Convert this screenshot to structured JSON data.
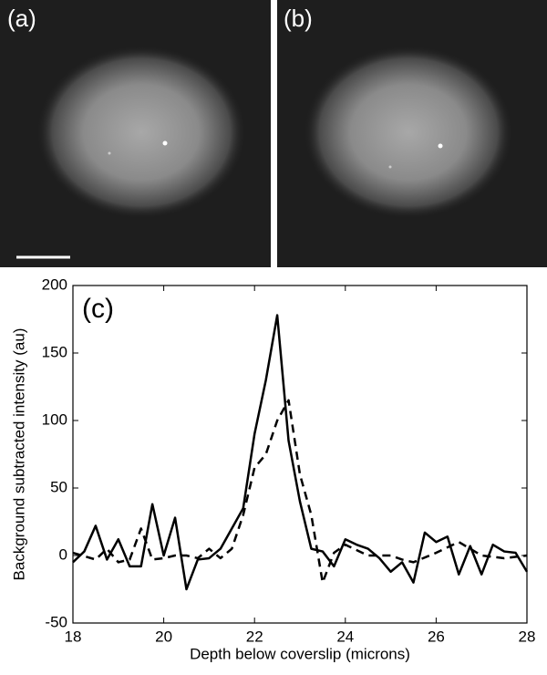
{
  "panels": [
    {
      "label": "(a)"
    },
    {
      "label": "(b)"
    }
  ],
  "chart_data": {
    "type": "line",
    "annotation": "(c)",
    "x_label": "Depth below coverslip (microns)",
    "y_label": "Background subtracted intensity (au)",
    "xlim": [
      18,
      28
    ],
    "ylim": [
      -50,
      200
    ],
    "xticks": [
      18,
      20,
      22,
      24,
      26,
      28
    ],
    "yticks": [
      -50,
      0,
      50,
      100,
      150,
      200
    ],
    "grid": false,
    "series": [
      {
        "color": "#000000",
        "style": "solid",
        "x": [
          18,
          18.25,
          18.5,
          18.75,
          19,
          19.25,
          19.5,
          19.75,
          20,
          20.25,
          20.5,
          20.75,
          21,
          21.25,
          21.5,
          21.75,
          22,
          22.25,
          22.5,
          22.75,
          23,
          23.25,
          23.5,
          23.75,
          24,
          24.25,
          24.5,
          24.75,
          25,
          25.25,
          25.5,
          25.75,
          26,
          26.25,
          26.5,
          26.75,
          27,
          27.25,
          27.5,
          27.75,
          28
        ],
        "values": [
          -5,
          3,
          22,
          -3,
          12,
          -8,
          -8,
          38,
          0,
          28,
          -25,
          -3,
          -2,
          5,
          20,
          35,
          90,
          130,
          178,
          85,
          40,
          5,
          3,
          -8,
          12,
          8,
          5,
          -2,
          -12,
          -5,
          -20,
          17,
          10,
          14,
          -14,
          7,
          -14,
          8,
          3,
          2,
          -12
        ]
      },
      {
        "color": "#000000",
        "style": "dashed",
        "x": [
          18,
          18.5,
          18.75,
          19,
          19.25,
          19.5,
          19.75,
          20,
          20.25,
          20.5,
          20.75,
          21,
          21.25,
          21.5,
          21.75,
          22,
          22.25,
          22.5,
          22.75,
          23,
          23.25,
          23.5,
          23.75,
          24,
          24.5,
          25,
          25.25,
          25.5,
          26,
          26.5,
          27,
          27.5,
          28
        ],
        "values": [
          2,
          -3,
          5,
          -5,
          -3,
          20,
          -3,
          -2,
          0,
          0,
          -2,
          5,
          -2,
          5,
          30,
          65,
          75,
          100,
          115,
          60,
          30,
          -20,
          2,
          8,
          0,
          0,
          -3,
          -5,
          2,
          10,
          0,
          -2,
          0
        ]
      }
    ]
  }
}
